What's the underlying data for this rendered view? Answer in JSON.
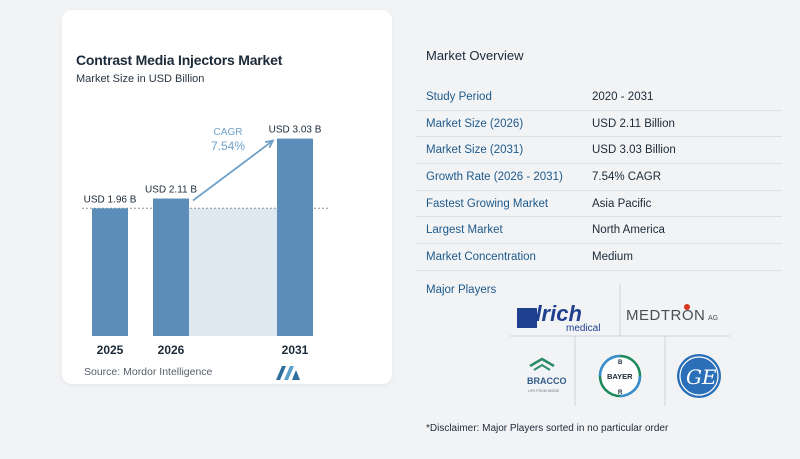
{
  "chart_data": {
    "type": "bar",
    "title": "Contrast Media Injectors Market",
    "subtitle": "Market Size in USD Billion",
    "categories": [
      "2025",
      "2026",
      "2031"
    ],
    "values": [
      1.96,
      2.11,
      3.03
    ],
    "data_labels": [
      "USD 1.96 B",
      "USD 2.11 B",
      "USD 3.03 B"
    ],
    "cagr_label": "CAGR",
    "cagr_value": "7.54%",
    "ylim": [
      0,
      3.3
    ],
    "bar_color": "#5b8db8",
    "shade_color": "#dde8f1",
    "grid": false
  },
  "source": "Source:  Mordor Intelligence",
  "overview": {
    "heading": "Market Overview",
    "rows": [
      {
        "label": "Study Period",
        "value": "2020 - 2031"
      },
      {
        "label": "Market Size (2026)",
        "value": "USD 2.11 Billion"
      },
      {
        "label": "Market Size (2031)",
        "value": "USD 3.03 Billion"
      },
      {
        "label": "Growth Rate (2026 - 2031)",
        "value": "7.54% CAGR"
      },
      {
        "label": "Fastest Growing Market",
        "value": "Asia Pacific"
      },
      {
        "label": "Largest Market",
        "value": "North America"
      },
      {
        "label": "Market Concentration",
        "value": "Medium"
      }
    ],
    "players_label": "Major Players",
    "players": {
      "ulrich": {
        "name": "ulrich",
        "sub": "medical"
      },
      "medtron": {
        "name": "MEDTRON",
        "suffix": "AG"
      },
      "bracco": {
        "name": "BRACCO",
        "tagline": "LIFE FROM INSIDE"
      },
      "bayer": {
        "name": "BAYER"
      },
      "ge": {
        "name": "GE"
      }
    },
    "disclaimer": "*Disclaimer: Major Players sorted in no particular order"
  }
}
